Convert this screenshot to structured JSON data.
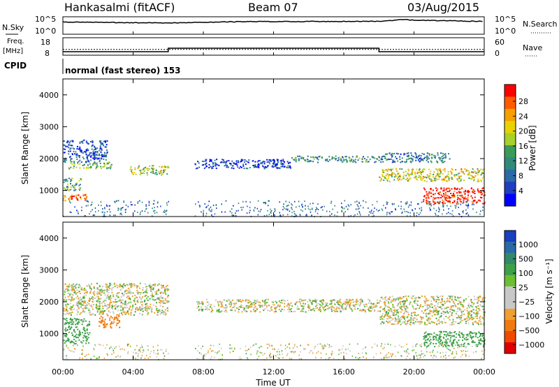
{
  "header": {
    "station": "Hankasalmi (fitACF)",
    "beam": "Beam 07",
    "date": "03/Aug/2015"
  },
  "summary": {
    "nsky_label": "N.Sky",
    "nsky_ticks": [
      "10^5",
      "10^0"
    ],
    "nsearch_label": "N.Search",
    "nsearch_ticks": [
      "10^5",
      "10^0"
    ],
    "freq_label_line1": "Freq.",
    "freq_label_line2": "[MHz]",
    "freq_ticks": [
      "18",
      "8"
    ],
    "nave_label": "Nave",
    "nave_ticks": [
      "60",
      "0"
    ],
    "cpid_label": "CPID",
    "cpid_text": "normal (fast stereo) 153"
  },
  "axes": {
    "ylabel": "Slant Range [km]",
    "yticks": [
      "4000",
      "3000",
      "2000",
      "1000"
    ],
    "xticks": [
      "00:00",
      "04:00",
      "08:00",
      "12:00",
      "16:00",
      "20:00",
      "00:00"
    ],
    "xlabel": "Time UT"
  },
  "power_scale": {
    "label": "Power [dB]",
    "ticks": [
      "28",
      "24",
      "20",
      "16",
      "12",
      "8",
      "4"
    ],
    "colors": [
      "#ff0000",
      "#ff5a00",
      "#f5a000",
      "#e8d200",
      "#a8cf2a",
      "#3a9a5a",
      "#2f8a7a",
      "#2a6aa8",
      "#1f3fc0",
      "#0000ff"
    ]
  },
  "velocity_scale": {
    "label": "Velocity [m s⁻¹]",
    "ticks": [
      "1000",
      "500",
      "100",
      "25",
      "−25",
      "−100",
      "−500",
      "−1000"
    ],
    "colors": [
      "#1a3fbf",
      "#2a6aa8",
      "#2f8a6a",
      "#3fa04a",
      "#6ac030",
      "#c8c8c8",
      "#c8c8c8",
      "#f0a030",
      "#f07a10",
      "#f04a00",
      "#e00000"
    ]
  },
  "chart_data": {
    "type": "heatmap",
    "x_range_hours": [
      0,
      24
    ],
    "y_range_km": [
      180,
      4500
    ],
    "power_regions": [
      {
        "t": [
          0.0,
          1.4
        ],
        "r": [
          700,
          900
        ],
        "level": 26
      },
      {
        "t": [
          0.0,
          1.0
        ],
        "r": [
          1000,
          1400
        ],
        "level": 14
      },
      {
        "t": [
          0.3,
          2.8
        ],
        "r": [
          1700,
          1900
        ],
        "level": 16
      },
      {
        "t": [
          0.0,
          2.5
        ],
        "r": [
          1900,
          2600
        ],
        "level": 8
      },
      {
        "t": [
          3.8,
          6.0
        ],
        "r": [
          1500,
          1800
        ],
        "level": 18
      },
      {
        "t": [
          7.5,
          13.0
        ],
        "r": [
          1700,
          2000
        ],
        "level": 6
      },
      {
        "t": [
          13.0,
          18.0
        ],
        "r": [
          1900,
          2100
        ],
        "level": 12
      },
      {
        "t": [
          18.0,
          24.0
        ],
        "r": [
          1300,
          1700
        ],
        "level": 20
      },
      {
        "t": [
          18.0,
          22.0
        ],
        "r": [
          1900,
          2200
        ],
        "level": 10
      },
      {
        "t": [
          20.5,
          24.0
        ],
        "r": [
          600,
          1100
        ],
        "level": 30
      }
    ],
    "velocity_regions": [
      {
        "t": [
          0.0,
          6.0
        ],
        "r": [
          1600,
          2600
        ],
        "value": 0
      },
      {
        "t": [
          0.0,
          1.5
        ],
        "r": [
          700,
          1500
        ],
        "value": 200
      },
      {
        "t": [
          2.0,
          3.2
        ],
        "r": [
          1200,
          1600
        ],
        "value": -300
      },
      {
        "t": [
          7.5,
          18.0
        ],
        "r": [
          1700,
          2100
        ],
        "value": 0
      },
      {
        "t": [
          18.0,
          24.0
        ],
        "r": [
          1300,
          2200
        ],
        "value": 0
      },
      {
        "t": [
          20.5,
          24.0
        ],
        "r": [
          600,
          1100
        ],
        "value": 150
      }
    ],
    "nsky": {
      "t": [
        0,
        6,
        10,
        18,
        19.5,
        20,
        24
      ],
      "value": [
        3.5,
        3.2,
        3.6,
        3.7,
        4.2,
        4.0,
        3.7
      ]
    },
    "frequency_mhz": {
      "t": [
        0,
        6,
        6,
        18,
        18,
        24
      ],
      "value": [
        10,
        10,
        12,
        12,
        10,
        10
      ]
    },
    "nave": {
      "t": [
        0,
        24
      ],
      "value": [
        20,
        20
      ]
    }
  }
}
